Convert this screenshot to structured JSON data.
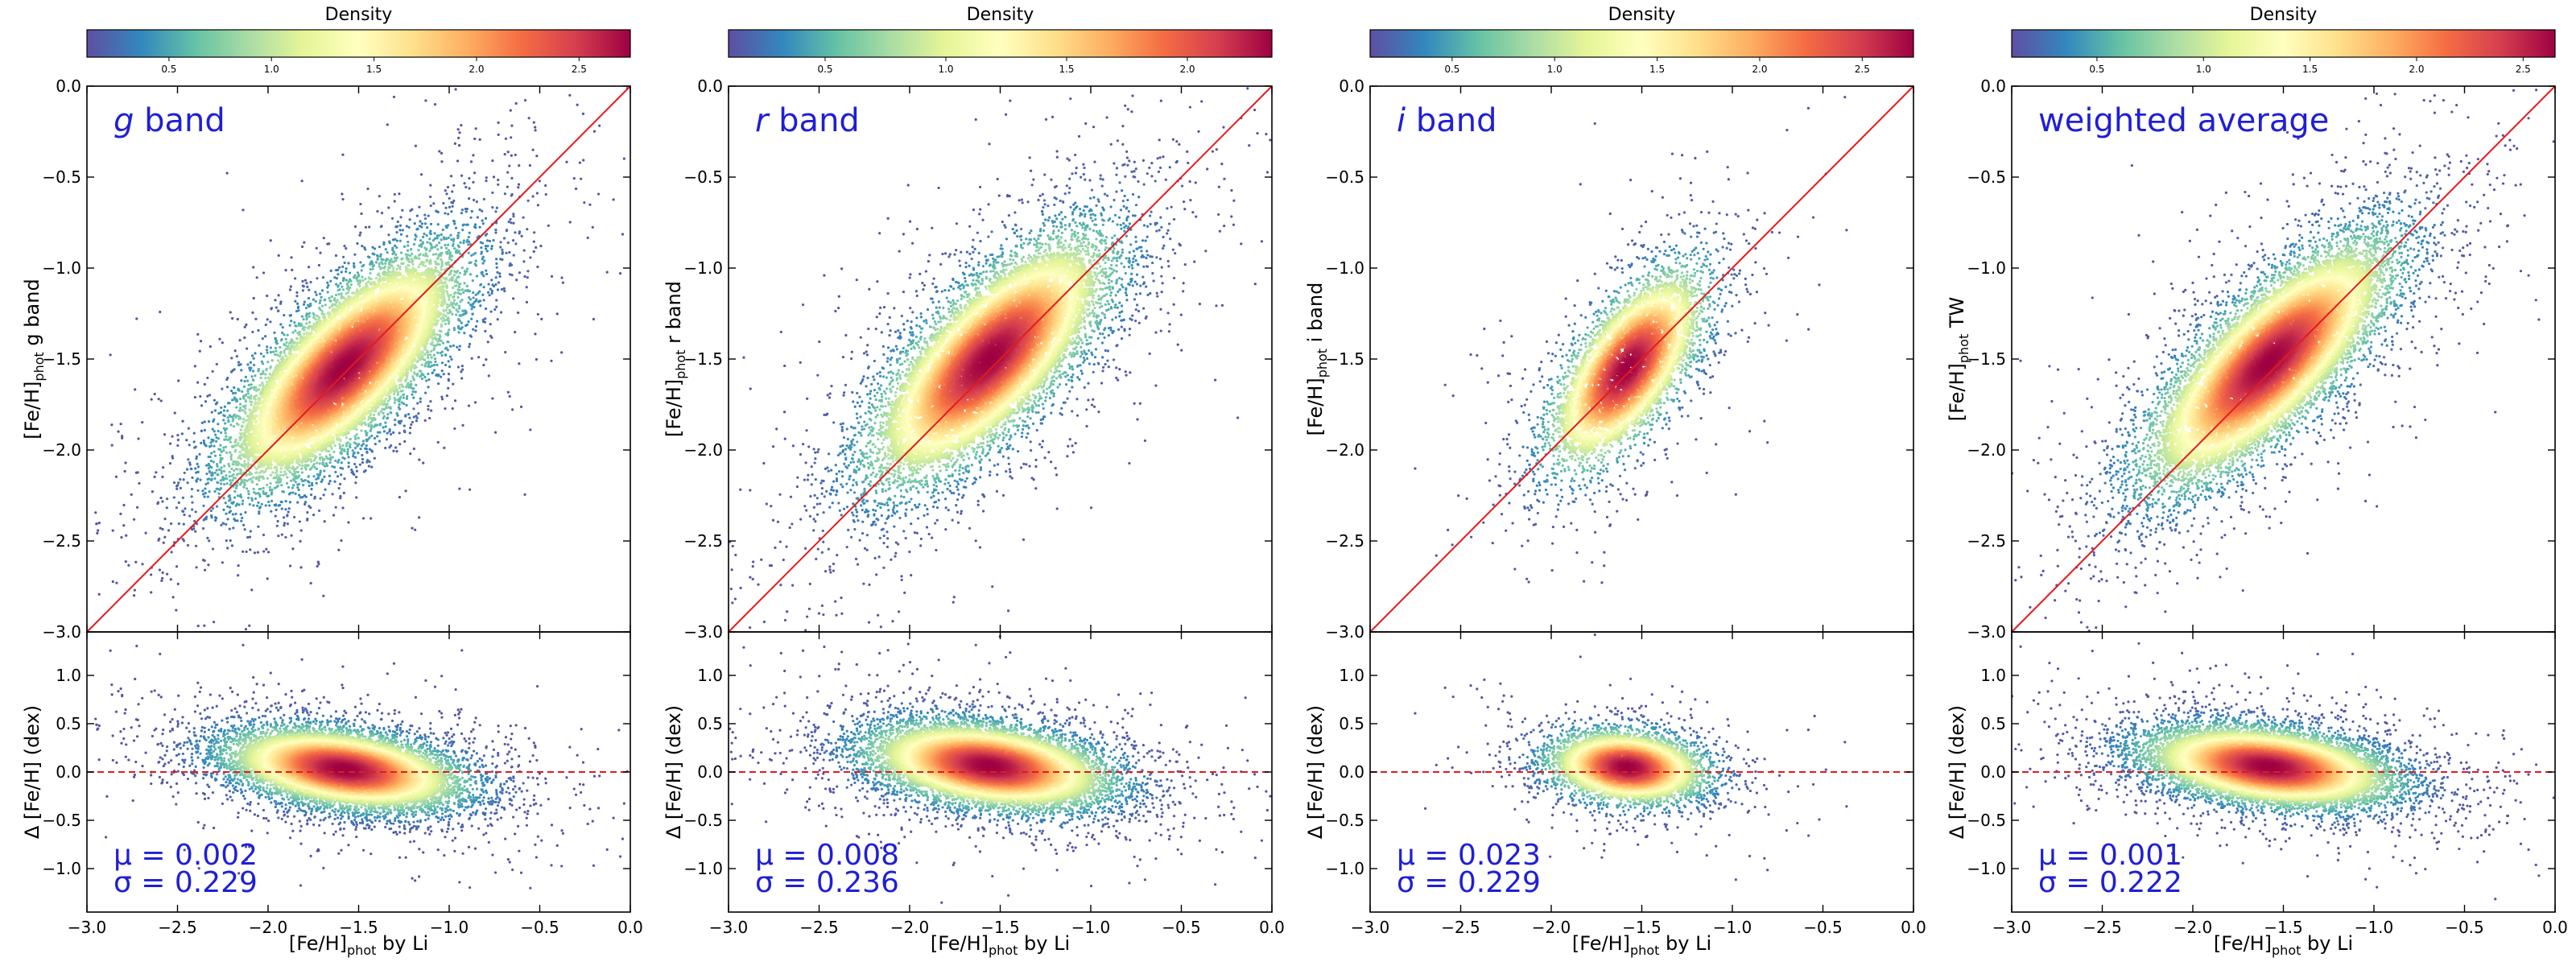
{
  "figure": {
    "colorbar_label": "Density",
    "colormap": [
      "#5e4fa2",
      "#3288bd",
      "#66c2a5",
      "#abdda4",
      "#e6f598",
      "#ffffbf",
      "#fee08b",
      "#fdae61",
      "#f46d43",
      "#d53e4f",
      "#9e0142"
    ],
    "identity_line_color": "#e41a1c",
    "label_color": "#1f1fd6",
    "shared_xlabel": "[Fe/H]phot by Li",
    "residual_ylabel": "Δ [Fe/H] (dex)"
  },
  "chart_data": [
    {
      "type": "scatter",
      "panel": "g",
      "band_label_italic": "g",
      "band_label_rest": " band",
      "ylabel_prefix": "[Fe/H]",
      "ylabel_sub": "phot",
      "ylabel_suffix": " g band",
      "colorbar": {
        "min_tick": 0.5,
        "ticks": [
          "0.5",
          "1.0",
          "1.5",
          "2.0",
          "2.5"
        ],
        "range": [
          0.1,
          2.75
        ]
      },
      "top": {
        "xlim": [
          -3.0,
          0.0
        ],
        "ylim": [
          -3.0,
          0.0
        ],
        "yticks": [
          "0.0",
          "−0.5",
          "−1.0",
          "−1.5",
          "−2.0",
          "−2.5",
          "−3.0"
        ],
        "center": [
          -1.58,
          -1.55
        ],
        "spread_x": 0.33,
        "spread_y": 0.33,
        "corr": 0.74,
        "n_points": 9000
      },
      "bottom": {
        "xlim": [
          -3.0,
          0.0
        ],
        "ylim": [
          -1.45,
          1.45
        ],
        "yticks": [
          "1.0",
          "0.5",
          "0.0",
          "−0.5",
          "−1.0"
        ],
        "xticks": [
          "−3.0",
          "−2.5",
          "−2.0",
          "−1.5",
          "−1.0",
          "−0.5",
          "0.0"
        ],
        "zero_line": 0.0
      },
      "stats": {
        "mu_label": "μ = 0.002",
        "sigma_label": "σ = 0.229",
        "mu": 0.002,
        "sigma": 0.229
      }
    },
    {
      "type": "scatter",
      "panel": "r",
      "band_label_italic": "r",
      "band_label_rest": " band",
      "ylabel_prefix": "[Fe/H]",
      "ylabel_sub": "phot",
      "ylabel_suffix": " r band",
      "colorbar": {
        "ticks": [
          "0.5",
          "1.0",
          "1.5",
          "2.0"
        ],
        "range": [
          0.1,
          2.35
        ]
      },
      "top": {
        "xlim": [
          -3.0,
          0.0
        ],
        "ylim": [
          -3.0,
          0.0
        ],
        "yticks": [
          "0.0",
          "−0.5",
          "−1.0",
          "−1.5",
          "−2.0",
          "−2.5",
          "−3.0"
        ],
        "center": [
          -1.56,
          -1.5
        ],
        "spread_x": 0.34,
        "spread_y": 0.35,
        "corr": 0.73,
        "n_points": 9000
      },
      "bottom": {
        "xlim": [
          -3.0,
          0.0
        ],
        "ylim": [
          -1.45,
          1.45
        ],
        "yticks": [
          "1.0",
          "0.5",
          "0.0",
          "−0.5",
          "−1.0"
        ],
        "xticks": [
          "−3.0",
          "−2.5",
          "−2.0",
          "−1.5",
          "−1.0",
          "−0.5",
          "0.0"
        ],
        "zero_line": 0.0
      },
      "stats": {
        "mu_label": "μ = 0.008",
        "sigma_label": "σ = 0.236",
        "mu": 0.008,
        "sigma": 0.236
      }
    },
    {
      "type": "scatter",
      "panel": "i",
      "band_label_italic": "i",
      "band_label_rest": " band",
      "ylabel_prefix": "[Fe/H]",
      "ylabel_sub": "phot",
      "ylabel_suffix": " i band",
      "colorbar": {
        "ticks": [
          "0.5",
          "1.0",
          "1.5",
          "2.0",
          "2.5"
        ],
        "range": [
          0.1,
          2.75
        ]
      },
      "top": {
        "xlim": [
          -3.0,
          0.0
        ],
        "ylim": [
          -3.0,
          0.0
        ],
        "yticks": [
          "0.0",
          "−0.5",
          "−1.0",
          "−1.5",
          "−2.0",
          "−2.5",
          "−3.0"
        ],
        "center": [
          -1.58,
          -1.55
        ],
        "spread_x": 0.22,
        "spread_y": 0.28,
        "corr": 0.66,
        "n_points": 4200
      },
      "bottom": {
        "xlim": [
          -3.0,
          0.0
        ],
        "ylim": [
          -1.45,
          1.45
        ],
        "yticks": [
          "1.0",
          "0.5",
          "0.0",
          "−0.5",
          "−1.0"
        ],
        "xticks": [
          "−3.0",
          "−2.5",
          "−2.0",
          "−1.5",
          "−1.0",
          "−0.5",
          "0.0"
        ],
        "zero_line": 0.0
      },
      "stats": {
        "mu_label": "μ = 0.023",
        "sigma_label": "σ = 0.229",
        "mu": 0.023,
        "sigma": 0.229
      }
    },
    {
      "type": "scatter",
      "panel": "weighted",
      "band_label_italic": "",
      "band_label_rest": "weighted average",
      "ylabel_prefix": "[Fe/H]",
      "ylabel_sub": "phot",
      "ylabel_suffix": " TW",
      "colorbar": {
        "ticks": [
          "0.5",
          "1.0",
          "1.5",
          "2.0",
          "2.5"
        ],
        "range": [
          0.1,
          2.65
        ]
      },
      "top": {
        "xlim": [
          -3.0,
          0.0
        ],
        "ylim": [
          -3.0,
          0.0
        ],
        "yticks": [
          "0.0",
          "−0.5",
          "−1.0",
          "−1.5",
          "−2.0",
          "−2.5",
          "−3.0"
        ],
        "center": [
          -1.58,
          -1.52
        ],
        "spread_x": 0.35,
        "spread_y": 0.35,
        "corr": 0.77,
        "n_points": 9500
      },
      "bottom": {
        "xlim": [
          -3.0,
          0.0
        ],
        "ylim": [
          -1.45,
          1.45
        ],
        "yticks": [
          "1.0",
          "0.5",
          "0.0",
          "−0.5",
          "−1.0"
        ],
        "xticks": [
          "−3.0",
          "−2.5",
          "−2.0",
          "−1.5",
          "−1.0",
          "−0.5",
          "0.0"
        ],
        "zero_line": 0.0
      },
      "stats": {
        "mu_label": "μ = 0.001",
        "sigma_label": "σ = 0.222",
        "mu": 0.001,
        "sigma": 0.222
      }
    }
  ]
}
